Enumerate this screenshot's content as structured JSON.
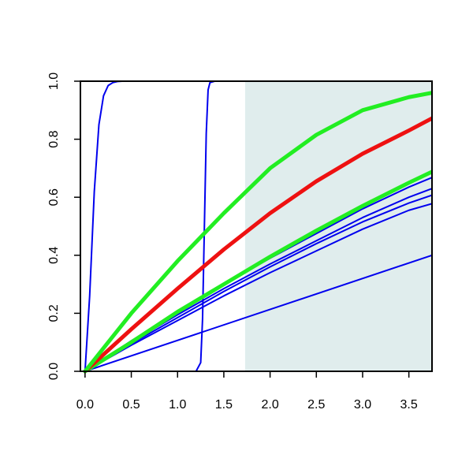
{
  "chart_data": {
    "type": "line",
    "title": "",
    "xlabel": "",
    "ylabel": "",
    "xlim": [
      -0.05,
      3.75
    ],
    "ylim": [
      0,
      1
    ],
    "x_ticks": [
      0.0,
      0.5,
      1.0,
      1.5,
      2.0,
      2.5,
      3.0,
      3.5
    ],
    "x_tick_labels": [
      "0.0",
      "0.5",
      "1.0",
      "1.5",
      "2.0",
      "2.5",
      "3.0",
      "3.5"
    ],
    "y_ticks": [
      0.0,
      0.2,
      0.4,
      0.6,
      0.8,
      1.0
    ],
    "y_tick_labels": [
      "0.0",
      "0.2",
      "0.4",
      "0.6",
      "0.8",
      "1.0"
    ],
    "grid": false,
    "legend": "none",
    "shaded_region": {
      "x_start": 1.73,
      "x_end": 3.75,
      "color": "#e0eded"
    },
    "series": [
      {
        "color": "#0000ee",
        "line_width": 2,
        "x": [
          0,
          0.05,
          0.1,
          0.15,
          0.2,
          0.25,
          0.3,
          0.35,
          0.4,
          0.5,
          3.75
        ],
        "y": [
          0,
          0.26,
          0.62,
          0.85,
          0.95,
          0.985,
          0.995,
          0.999,
          1.0,
          1.0,
          1.0
        ]
      },
      {
        "color": "#0000ee",
        "line_width": 2,
        "x": [
          0,
          1.2,
          1.25,
          1.27,
          1.29,
          1.31,
          1.33,
          1.35,
          1.4,
          3.75
        ],
        "y": [
          0,
          0,
          0.03,
          0.18,
          0.5,
          0.82,
          0.97,
          0.995,
          1.0,
          1.0
        ]
      },
      {
        "color": "#0000ee",
        "line_width": 2,
        "x": [
          0,
          3.75
        ],
        "y": [
          0,
          0.4
        ]
      },
      {
        "color": "#0000ee",
        "line_width": 2,
        "x": [
          0,
          0.5,
          1.0,
          1.5,
          2.0,
          2.5,
          3.0,
          3.5,
          3.75
        ],
        "y": [
          0,
          0.09,
          0.175,
          0.26,
          0.34,
          0.415,
          0.49,
          0.555,
          0.578
        ]
      },
      {
        "color": "#0000ee",
        "line_width": 2,
        "x": [
          0,
          0.5,
          1.0,
          1.5,
          2.0,
          2.5,
          3.0,
          3.5,
          3.75
        ],
        "y": [
          0,
          0.095,
          0.185,
          0.275,
          0.36,
          0.44,
          0.515,
          0.58,
          0.607
        ]
      },
      {
        "color": "#0000ee",
        "line_width": 2,
        "x": [
          0,
          0.5,
          1.0,
          1.5,
          2.0,
          2.5,
          3.0,
          3.5,
          3.75
        ],
        "y": [
          0,
          0.1,
          0.195,
          0.285,
          0.37,
          0.45,
          0.53,
          0.6,
          0.63
        ]
      },
      {
        "color": "#0000ee",
        "line_width": 2,
        "x": [
          0,
          0.5,
          1.0,
          1.5,
          2.0,
          2.5,
          3.0,
          3.5,
          3.75
        ],
        "y": [
          0,
          0.105,
          0.205,
          0.3,
          0.39,
          0.475,
          0.56,
          0.635,
          0.668
        ]
      },
      {
        "color": "#22ee22",
        "line_width": 5,
        "x": [
          0,
          0.5,
          1.0,
          1.5,
          2.0,
          2.5,
          3.0,
          3.5,
          3.75
        ],
        "y": [
          0,
          0.1,
          0.205,
          0.3,
          0.395,
          0.485,
          0.57,
          0.65,
          0.688
        ]
      },
      {
        "color": "#ee1111",
        "line_width": 5,
        "x": [
          0,
          0.5,
          1.0,
          1.5,
          2.0,
          2.5,
          3.0,
          3.5,
          3.75
        ],
        "y": [
          0,
          0.145,
          0.285,
          0.42,
          0.545,
          0.655,
          0.75,
          0.83,
          0.872
        ]
      },
      {
        "color": "#22ee22",
        "line_width": 5,
        "x": [
          0,
          0.5,
          1.0,
          1.5,
          2.0,
          2.5,
          3.0,
          3.5,
          3.75
        ],
        "y": [
          0,
          0.2,
          0.38,
          0.545,
          0.7,
          0.815,
          0.9,
          0.945,
          0.96
        ]
      }
    ]
  }
}
